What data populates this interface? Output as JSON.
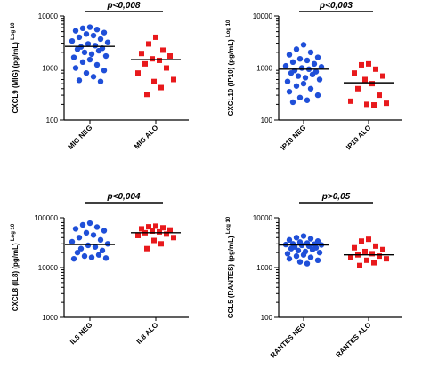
{
  "colors": {
    "neg": "#1f4fd8",
    "alo": "#e8191c"
  },
  "chart_data": [
    {
      "type": "scatter",
      "ylabel": "CXCL9 (MIG) (pg/mL)",
      "ylabel_suffix": "Log 10",
      "ylim": [
        100,
        10000
      ],
      "yscale": "log",
      "ticks": [
        100,
        1000,
        10000
      ],
      "tick_labels": [
        "100",
        "1000",
        "10000"
      ],
      "categories": [
        "MIG NEG",
        "MIG ALO"
      ],
      "pvalue": "p<0,008",
      "series": [
        {
          "marker": "circle",
          "color": "#1f4fd8",
          "values": [
            6100,
            5800,
            5500,
            5200,
            4800,
            4500,
            4200,
            3900,
            3600,
            3300,
            3100,
            2900,
            2700,
            2550,
            2400,
            2300,
            2150,
            2000,
            1850,
            1700,
            1600,
            1450,
            1300,
            1150,
            1000,
            900,
            800,
            680,
            580,
            550
          ],
          "median": 2600
        },
        {
          "marker": "square",
          "color": "#e8191c",
          "values": [
            3900,
            2900,
            2200,
            1900,
            1700,
            1500,
            1400,
            1200,
            1000,
            800,
            600,
            550,
            420,
            310
          ],
          "median": 1450
        }
      ]
    },
    {
      "type": "scatter",
      "ylabel": "CXCL10 (IP10) (pg/mL)",
      "ylabel_suffix": "Log 10",
      "ylim": [
        100,
        10000
      ],
      "yscale": "log",
      "ticks": [
        100,
        1000,
        10000
      ],
      "tick_labels": [
        "100",
        "1000",
        "10000"
      ],
      "categories": [
        "IP10 NEG",
        "IP10 ALO"
      ],
      "pvalue": "p<0,003",
      "series": [
        {
          "marker": "circle",
          "color": "#1f4fd8",
          "values": [
            2800,
            2300,
            2000,
            1800,
            1600,
            1500,
            1400,
            1300,
            1200,
            1100,
            1050,
            1000,
            950,
            900,
            850,
            800,
            750,
            700,
            650,
            600,
            550,
            500,
            450,
            400,
            350,
            300,
            270,
            240,
            220
          ],
          "median": 950
        },
        {
          "marker": "square",
          "color": "#e8191c",
          "values": [
            1200,
            1150,
            950,
            800,
            700,
            600,
            500,
            400,
            300,
            230,
            210,
            200,
            195
          ],
          "median": 520
        }
      ]
    },
    {
      "type": "scatter",
      "ylabel": "CXCL8 (IL8) (pg/mL)",
      "ylabel_suffix": "Log 10",
      "ylim": [
        1000,
        100000
      ],
      "yscale": "log",
      "ticks": [
        1000,
        10000,
        100000
      ],
      "tick_labels": [
        "1000",
        "10000",
        "100000"
      ],
      "categories": [
        "IL8 NEG",
        "IL8 ALO"
      ],
      "pvalue": "p<0,004",
      "series": [
        {
          "marker": "circle",
          "color": "#1f4fd8",
          "values": [
            78000,
            72000,
            65000,
            60000,
            55000,
            50000,
            45000,
            40000,
            36000,
            33000,
            30000,
            28000,
            26000,
            24000,
            22000,
            20000,
            18000,
            17000,
            16000,
            15500,
            15000
          ],
          "median": 29000
        },
        {
          "marker": "square",
          "color": "#e8191c",
          "values": [
            68000,
            66000,
            63000,
            60000,
            57000,
            54000,
            52000,
            50000,
            47000,
            44000,
            40000,
            35000,
            30000,
            24000
          ],
          "median": 50000
        }
      ]
    },
    {
      "type": "scatter",
      "ylabel": "CCL5 (RANTES) (pg/mL)",
      "ylabel_suffix": "Log 10",
      "ylim": [
        100,
        10000
      ],
      "yscale": "log",
      "ticks": [
        100,
        1000,
        10000
      ],
      "tick_labels": [
        "100",
        "1000",
        "10000"
      ],
      "categories": [
        "RANTES NEG",
        "RANTES ALO"
      ],
      "pvalue": "p>0,05",
      "series": [
        {
          "marker": "circle",
          "color": "#1f4fd8",
          "values": [
            4300,
            4000,
            3800,
            3600,
            3400,
            3250,
            3100,
            3000,
            2950,
            2900,
            2850,
            2800,
            2700,
            2600,
            2500,
            2400,
            2300,
            2200,
            2100,
            2000,
            1900,
            1800,
            1700,
            1600,
            1500,
            1400,
            1300,
            1200
          ],
          "median": 2850
        },
        {
          "marker": "square",
          "color": "#e8191c",
          "values": [
            3700,
            3400,
            2700,
            2500,
            2300,
            2100,
            1900,
            1800,
            1700,
            1600,
            1500,
            1400,
            1250,
            1100
          ],
          "median": 1800
        }
      ]
    }
  ]
}
